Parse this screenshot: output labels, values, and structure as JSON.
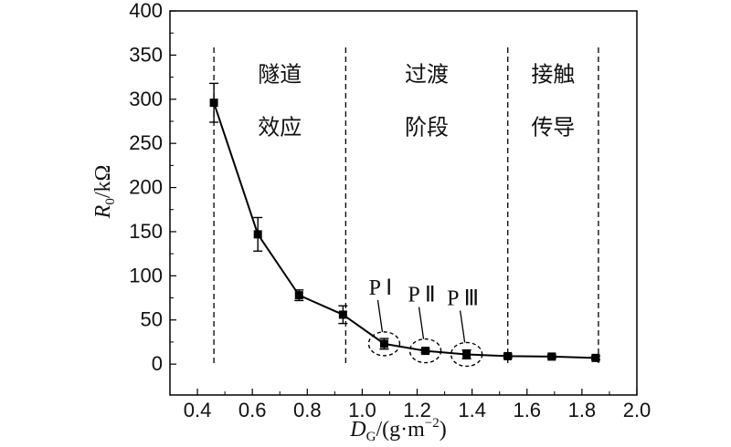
{
  "chart_data": {
    "type": "line",
    "xlabel_main": "D",
    "xlabel_sub": "G",
    "xlabel_unit": "/(g·m",
    "xlabel_sup": "−2",
    "xlabel_close": ")",
    "ylabel_main": "R",
    "ylabel_sub": "0",
    "ylabel_unit": "/kΩ",
    "xlim": [
      0.3,
      2.0
    ],
    "ylim": [
      -35,
      400
    ],
    "x_ticks": [
      0.4,
      0.6,
      0.8,
      1.0,
      1.2,
      1.4,
      1.6,
      1.8,
      2.0
    ],
    "x_tick_labels": [
      "0.4",
      "0.6",
      "0.8",
      "1.0",
      "1.2",
      "1.4",
      "1.6",
      "1.8",
      "2.0"
    ],
    "y_ticks": [
      0,
      50,
      100,
      150,
      200,
      250,
      300,
      350,
      400
    ],
    "y_tick_labels": [
      "0",
      "50",
      "100",
      "150",
      "200",
      "250",
      "300",
      "350",
      "400"
    ],
    "series": [
      {
        "x": [
          0.46,
          0.62,
          0.77,
          0.93,
          1.08,
          1.23,
          1.38,
          1.53,
          1.69,
          1.85
        ],
        "y": [
          296,
          147,
          78,
          56,
          23,
          15,
          11,
          9,
          8.5,
          7
        ],
        "err": [
          22,
          19,
          6,
          10,
          6,
          2,
          5,
          2,
          2,
          2
        ]
      }
    ],
    "region_boundaries": [
      0.46,
      0.94,
      1.53,
      1.86
    ],
    "regions": [
      {
        "line1": "隧道",
        "line2": "效应",
        "x": 0.7
      },
      {
        "line1": "过渡",
        "line2": "阶段",
        "x": 1.235
      },
      {
        "line1": "接触",
        "line2": "传导",
        "x": 1.695
      }
    ],
    "region_label_y1": 320,
    "region_label_y2": 260,
    "highlighted_points": [
      {
        "label": "P Ⅰ",
        "x": 1.08,
        "y": 23
      },
      {
        "label": "P Ⅱ",
        "x": 1.23,
        "y": 15
      },
      {
        "label": "P Ⅲ",
        "x": 1.38,
        "y": 11
      }
    ],
    "line_color": "#000000"
  }
}
